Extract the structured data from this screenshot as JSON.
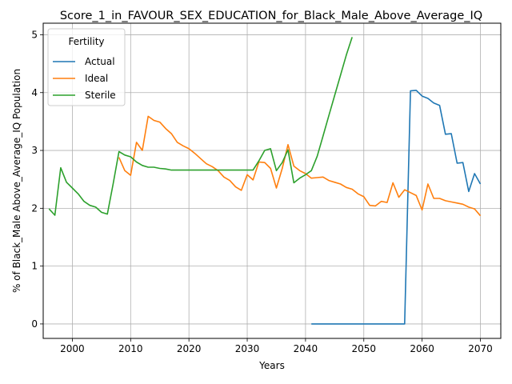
{
  "chart_data": {
    "type": "line",
    "title": "Score_1_in_FAVOUR_SEX_EDUCATION_for_Black_Male_Above_Average_IQ",
    "xlabel": "Years",
    "ylabel": "% of Black_Male Above_Average_IQ Population",
    "xlim": [
      1995,
      2073.5
    ],
    "ylim": [
      -0.25,
      5.2
    ],
    "xticks": [
      2000,
      2010,
      2020,
      2030,
      2040,
      2050,
      2060,
      2070
    ],
    "yticks": [
      0,
      1,
      2,
      3,
      4,
      5
    ],
    "grid": true,
    "legend": {
      "title": "Fertility",
      "placement": "top-left"
    },
    "series": [
      {
        "name": "Actual",
        "color": "#1f77b4",
        "x": [
          2041,
          2042,
          2043,
          2044,
          2045,
          2046,
          2047,
          2048,
          2049,
          2050,
          2051,
          2052,
          2053,
          2054,
          2055,
          2056,
          2057,
          2058,
          2059,
          2060,
          2061,
          2062,
          2063,
          2064,
          2065,
          2066,
          2067,
          2068,
          2069,
          2070
        ],
        "y": [
          0,
          0,
          0,
          0,
          0,
          0,
          0,
          0,
          0,
          0,
          0,
          0,
          0,
          0,
          0,
          0,
          0,
          4.03,
          4.04,
          3.94,
          3.9,
          3.82,
          3.78,
          3.28,
          3.29,
          2.78,
          2.79,
          2.29,
          2.6,
          2.42
        ]
      },
      {
        "name": "Ideal",
        "color": "#ff7f0e",
        "x": [
          2008,
          2009,
          2010,
          2011,
          2012,
          2013,
          2014,
          2015,
          2016,
          2017,
          2018,
          2019,
          2020,
          2021,
          2022,
          2023,
          2024,
          2025,
          2026,
          2027,
          2028,
          2029,
          2030,
          2031,
          2032,
          2033,
          2034,
          2035,
          2036,
          2037,
          2038,
          2039,
          2040,
          2041,
          2042,
          2043,
          2044,
          2045,
          2046,
          2047,
          2048,
          2049,
          2050,
          2051,
          2052,
          2053,
          2054,
          2055,
          2056,
          2057,
          2058,
          2059,
          2060,
          2061,
          2062,
          2063,
          2064,
          2065,
          2066,
          2067,
          2068,
          2069,
          2070
        ],
        "y": [
          2.88,
          2.65,
          2.57,
          3.14,
          3.0,
          3.59,
          3.52,
          3.49,
          3.38,
          3.29,
          3.14,
          3.08,
          3.03,
          2.95,
          2.86,
          2.77,
          2.72,
          2.65,
          2.54,
          2.48,
          2.37,
          2.31,
          2.58,
          2.49,
          2.8,
          2.79,
          2.69,
          2.35,
          2.69,
          3.1,
          2.73,
          2.65,
          2.6,
          2.52,
          2.53,
          2.54,
          2.48,
          2.45,
          2.42,
          2.36,
          2.33,
          2.25,
          2.2,
          2.05,
          2.04,
          2.12,
          2.1,
          2.44,
          2.19,
          2.32,
          2.27,
          2.22,
          1.97,
          2.42,
          2.17,
          2.17,
          2.13,
          2.11,
          2.09,
          2.07,
          2.02,
          1.99,
          1.87
        ]
      },
      {
        "name": "Sterile",
        "color": "#2ca02c",
        "x": [
          1996,
          1997,
          1998,
          1999,
          2000,
          2001,
          2002,
          2003,
          2004,
          2005,
          2006,
          2007,
          2008,
          2009,
          2010,
          2011,
          2012,
          2013,
          2014,
          2015,
          2016,
          2017,
          2018,
          2019,
          2020,
          2021,
          2022,
          2023,
          2024,
          2025,
          2026,
          2027,
          2028,
          2029,
          2030,
          2031,
          2032,
          2033,
          2034,
          2035,
          2036,
          2037,
          2038,
          2039,
          2040,
          2041,
          2042,
          2043,
          2044,
          2045,
          2046,
          2047,
          2048
        ],
        "y": [
          1.99,
          1.88,
          2.7,
          2.45,
          2.35,
          2.25,
          2.12,
          2.05,
          2.02,
          1.93,
          1.9,
          2.42,
          2.98,
          2.92,
          2.89,
          2.8,
          2.74,
          2.71,
          2.71,
          2.69,
          2.68,
          2.66,
          2.66,
          2.66,
          2.66,
          2.66,
          2.66,
          2.66,
          2.66,
          2.66,
          2.66,
          2.66,
          2.66,
          2.66,
          2.66,
          2.66,
          2.82,
          3.0,
          3.03,
          2.65,
          2.79,
          3.01,
          2.44,
          2.52,
          2.58,
          2.65,
          2.9,
          3.25,
          3.6,
          3.95,
          4.3,
          4.65,
          4.96
        ]
      }
    ]
  }
}
